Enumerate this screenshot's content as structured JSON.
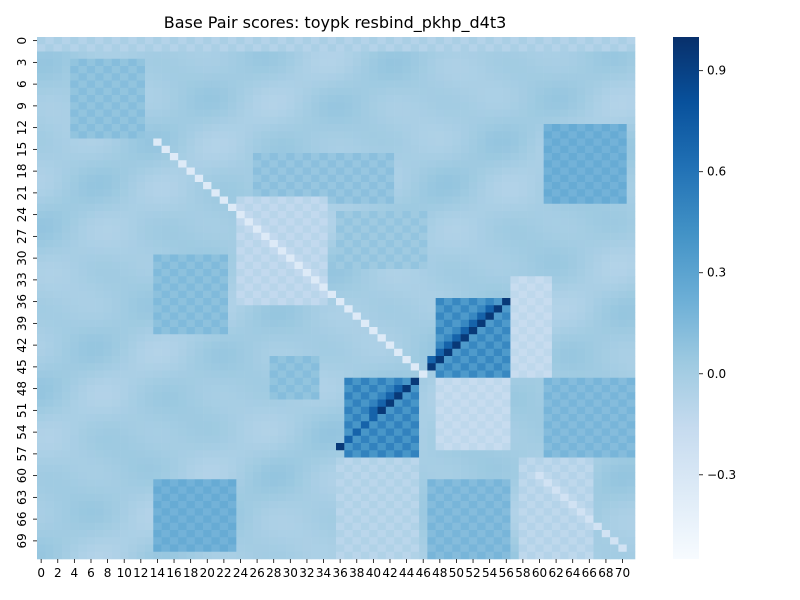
{
  "chart_data": {
    "type": "heatmap",
    "title": "Base Pair scores: toypk resbind_pkhp_d4t3",
    "xlabel": "",
    "ylabel": "",
    "n": 72,
    "x_ticks": [
      0,
      2,
      4,
      6,
      8,
      10,
      12,
      14,
      16,
      18,
      20,
      22,
      24,
      26,
      28,
      30,
      32,
      34,
      36,
      38,
      40,
      42,
      44,
      46,
      48,
      50,
      52,
      54,
      56,
      58,
      60,
      62,
      64,
      66,
      68,
      70
    ],
    "y_ticks": [
      0,
      3,
      6,
      9,
      12,
      15,
      18,
      21,
      24,
      27,
      30,
      33,
      36,
      39,
      42,
      45,
      48,
      51,
      54,
      57,
      60,
      63,
      66,
      69
    ],
    "colorbar": {
      "vmin": -0.55,
      "vmax": 1.0,
      "ticks": [
        -0.3,
        0.0,
        0.3,
        0.6,
        0.9
      ],
      "tick_labels": [
        "−0.3",
        "0.0",
        "0.3",
        "0.6",
        "0.9"
      ],
      "colormap": "Blues"
    },
    "background_value": 0.0,
    "symmetric": true,
    "regions": [
      {
        "rows": [
          36,
          46
        ],
        "cols": [
          48,
          56
        ],
        "value": 0.42
      },
      {
        "rows": [
          47,
          57
        ],
        "cols": [
          37,
          45
        ],
        "value": 0.45
      },
      {
        "rows": [
          12,
          22
        ],
        "cols": [
          61,
          70
        ],
        "value": 0.22
      },
      {
        "rows": [
          61,
          70
        ],
        "cols": [
          14,
          23
        ],
        "value": 0.22
      },
      {
        "rows": [
          3,
          13
        ],
        "cols": [
          4,
          12
        ],
        "value": 0.1
      },
      {
        "rows": [
          30,
          40
        ],
        "cols": [
          14,
          22
        ],
        "value": 0.12
      },
      {
        "rows": [
          47,
          57
        ],
        "cols": [
          61,
          71
        ],
        "value": 0.15
      },
      {
        "rows": [
          61,
          71
        ],
        "cols": [
          47,
          56
        ],
        "value": 0.15
      },
      {
        "rows": [
          16,
          22
        ],
        "cols": [
          26,
          42
        ],
        "value": 0.08
      },
      {
        "rows": [
          44,
          49
        ],
        "cols": [
          28,
          33
        ],
        "value": 0.1
      },
      {
        "rows": [
          24,
          31
        ],
        "cols": [
          36,
          46
        ],
        "value": 0.05
      },
      {
        "rows": [
          33,
          46
        ],
        "cols": [
          57,
          61
        ],
        "value": -0.15
      },
      {
        "rows": [
          22,
          36
        ],
        "cols": [
          24,
          34
        ],
        "value": -0.12
      },
      {
        "rows": [
          47,
          56
        ],
        "cols": [
          48,
          56
        ],
        "value": -0.15
      },
      {
        "rows": [
          58,
          71
        ],
        "cols": [
          58,
          66
        ],
        "value": -0.1
      },
      {
        "rows": [
          58,
          71
        ],
        "cols": [
          36,
          45
        ],
        "value": -0.08
      },
      {
        "rows": [
          0,
          1
        ],
        "cols": [
          0,
          71
        ],
        "value": -0.05
      }
    ],
    "diagonals": [
      {
        "from": [
          36,
          56
        ],
        "to": [
          45,
          47
        ],
        "value": 0.95
      },
      {
        "from": [
          47,
          45
        ],
        "to": [
          56,
          36
        ],
        "value": 0.95
      },
      {
        "from": [
          37,
          54
        ],
        "to": [
          44,
          47
        ],
        "value": 0.7
      },
      {
        "from": [
          48,
          43
        ],
        "to": [
          55,
          37
        ],
        "value": 0.7
      },
      {
        "from": [
          14,
          14
        ],
        "to": [
          46,
          46
        ],
        "value": -0.35
      },
      {
        "from": [
          60,
          60
        ],
        "to": [
          70,
          70
        ],
        "value": -0.25
      }
    ]
  }
}
